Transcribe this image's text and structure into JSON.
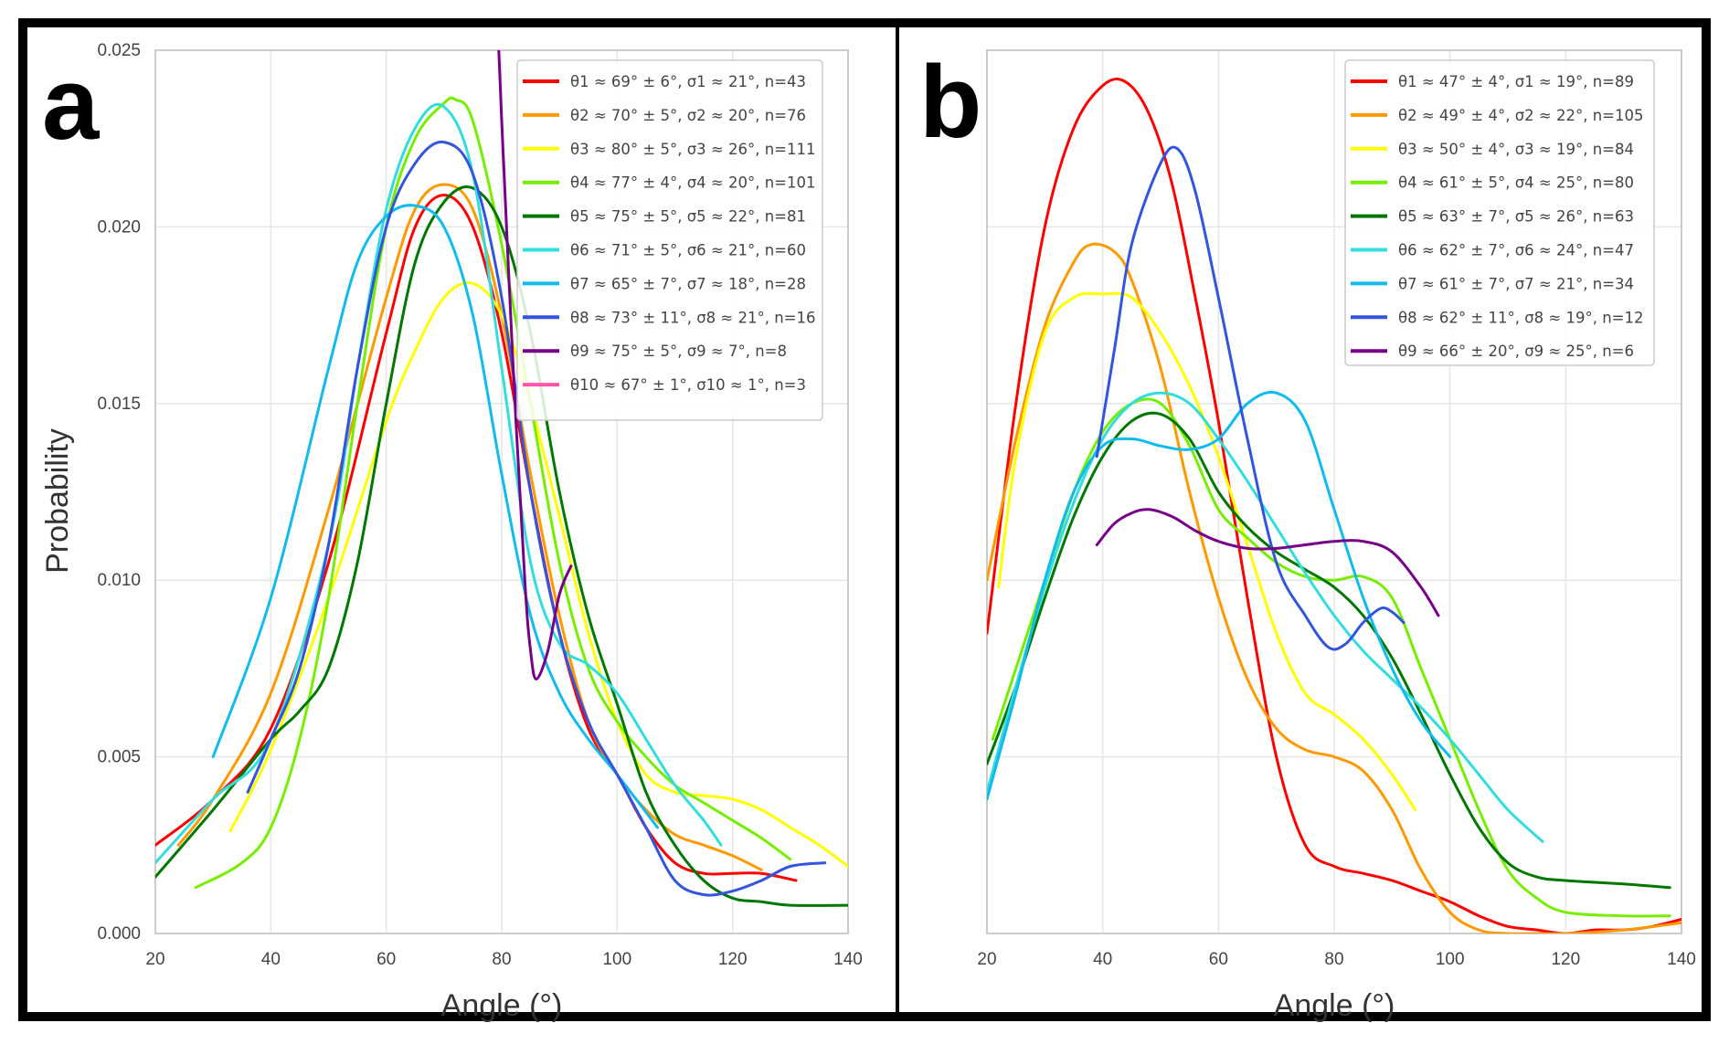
{
  "chart_data": [
    {
      "type": "line",
      "panel_label": "a",
      "title": "",
      "xlabel": "Angle (°)",
      "ylabel": "Probability",
      "xlim": [
        20,
        140
      ],
      "ylim": [
        0.0,
        0.025
      ],
      "x_ticks": [
        "20",
        "40",
        "60",
        "80",
        "100",
        "120",
        "140"
      ],
      "y_ticks": [
        "0.000",
        "0.005",
        "0.010",
        "0.015",
        "0.020",
        "0.025"
      ],
      "grid": true,
      "legend_position": "top-right",
      "series": [
        {
          "name": "θ1 ≈ 69° ± 6°, σ1 ≈ 21°, n=43",
          "color": "#ff0000",
          "x": [
            20,
            30,
            40,
            50,
            60,
            65,
            70,
            75,
            80,
            85,
            90,
            95,
            100,
            105,
            110,
            115,
            120,
            125,
            131
          ],
          "y": [
            0.0025,
            0.0038,
            0.0058,
            0.0105,
            0.017,
            0.02,
            0.0209,
            0.02,
            0.017,
            0.0125,
            0.0085,
            0.0058,
            0.0045,
            0.003,
            0.002,
            0.0017,
            0.0017,
            0.0017,
            0.0015
          ]
        },
        {
          "name": "θ2 ≈ 70° ± 5°, σ2 ≈ 20°, n=76",
          "color": "#ff9900",
          "x": [
            24,
            30,
            40,
            50,
            60,
            65,
            70,
            75,
            80,
            85,
            90,
            95,
            100,
            105,
            110,
            115,
            120,
            125
          ],
          "y": [
            0.0025,
            0.0038,
            0.0068,
            0.012,
            0.018,
            0.0205,
            0.0212,
            0.0205,
            0.0175,
            0.013,
            0.009,
            0.006,
            0.0045,
            0.0035,
            0.0028,
            0.0025,
            0.0022,
            0.0018
          ]
        },
        {
          "name": "θ3 ≈ 80° ± 5°, σ3 ≈ 26°, n=111",
          "color": "#ffff00",
          "x": [
            33,
            40,
            50,
            60,
            65,
            70,
            75,
            80,
            85,
            90,
            95,
            100,
            105,
            110,
            115,
            120,
            125,
            130,
            135,
            140
          ],
          "y": [
            0.0029,
            0.0052,
            0.0095,
            0.0145,
            0.0165,
            0.018,
            0.0184,
            0.0175,
            0.015,
            0.0118,
            0.0085,
            0.006,
            0.0045,
            0.004,
            0.0039,
            0.0038,
            0.0035,
            0.003,
            0.0025,
            0.0019
          ]
        },
        {
          "name": "θ4 ≈ 77° ± 4°, σ4 ≈ 20°, n=101",
          "color": "#77ee00",
          "x": [
            27,
            35,
            40,
            45,
            50,
            55,
            60,
            65,
            70,
            72,
            75,
            80,
            85,
            90,
            95,
            100,
            105,
            110,
            115,
            120,
            125,
            130
          ],
          "y": [
            0.0013,
            0.002,
            0.003,
            0.0055,
            0.0095,
            0.015,
            0.02,
            0.0225,
            0.0235,
            0.0236,
            0.023,
            0.0195,
            0.015,
            0.0105,
            0.0075,
            0.006,
            0.005,
            0.0042,
            0.0037,
            0.0032,
            0.0027,
            0.0021
          ]
        },
        {
          "name": "θ5 ≈ 75° ± 5°, σ5 ≈ 22°, n=81",
          "color": "#007700",
          "x": [
            20,
            30,
            40,
            45,
            50,
            55,
            60,
            65,
            70,
            75,
            80,
            85,
            90,
            95,
            100,
            105,
            110,
            115,
            120,
            125,
            130,
            140
          ],
          "y": [
            0.0016,
            0.0035,
            0.0055,
            0.0063,
            0.0075,
            0.0105,
            0.015,
            0.019,
            0.0207,
            0.0211,
            0.02,
            0.017,
            0.0125,
            0.009,
            0.0065,
            0.004,
            0.0025,
            0.0015,
            0.001,
            0.0009,
            0.0008,
            0.0008
          ]
        },
        {
          "name": "θ6 ≈ 71° ± 5°, σ6 ≈ 21°, n=60",
          "color": "#33dddd",
          "x": [
            20,
            30,
            40,
            50,
            55,
            60,
            65,
            70,
            75,
            80,
            85,
            90,
            95,
            100,
            105,
            110,
            115,
            118
          ],
          "y": [
            0.002,
            0.0038,
            0.0055,
            0.011,
            0.016,
            0.0205,
            0.0228,
            0.0234,
            0.0215,
            0.016,
            0.0105,
            0.0082,
            0.0076,
            0.0068,
            0.0055,
            0.0042,
            0.0032,
            0.0025
          ]
        },
        {
          "name": "θ7 ≈ 65° ± 7°, σ7 ≈ 18°, n=28",
          "color": "#11bbee",
          "x": [
            30,
            40,
            50,
            55,
            60,
            65,
            70,
            75,
            80,
            85,
            90,
            95,
            100,
            107
          ],
          "y": [
            0.005,
            0.0095,
            0.016,
            0.019,
            0.0203,
            0.0206,
            0.02,
            0.0175,
            0.013,
            0.009,
            0.0068,
            0.0055,
            0.0045,
            0.003
          ]
        },
        {
          "name": "θ8 ≈ 73° ± 11°, σ8 ≈ 21°, n=16",
          "color": "#3355dd",
          "x": [
            36,
            40,
            45,
            50,
            55,
            60,
            65,
            70,
            75,
            80,
            85,
            90,
            95,
            100,
            105,
            110,
            115,
            120,
            125,
            130,
            136
          ],
          "y": [
            0.004,
            0.0055,
            0.0075,
            0.011,
            0.016,
            0.02,
            0.0218,
            0.0224,
            0.0215,
            0.018,
            0.0125,
            0.0085,
            0.006,
            0.0045,
            0.003,
            0.0015,
            0.0011,
            0.0012,
            0.0015,
            0.0019,
            0.002
          ]
        },
        {
          "name": "θ9 ≈ 75° ± 5°, σ9 ≈ 7°, n=8",
          "color": "#770088",
          "x": [
            79.5,
            80,
            82,
            84,
            85,
            86,
            88,
            90,
            92
          ],
          "y": [
            0.025,
            0.023,
            0.016,
            0.01,
            0.008,
            0.0072,
            0.008,
            0.0096,
            0.0104
          ]
        },
        {
          "name": "θ10 ≈ 67° ± 1°, σ10 ≈ 1°, n=3",
          "color": "#ff55aa",
          "x": [],
          "y": []
        }
      ]
    },
    {
      "type": "line",
      "panel_label": "b",
      "title": "",
      "xlabel": "Angle (°)",
      "ylabel": "",
      "xlim": [
        20,
        140
      ],
      "ylim": [
        0.0,
        0.025
      ],
      "x_ticks": [
        "20",
        "40",
        "60",
        "80",
        "100",
        "120",
        "140"
      ],
      "y_ticks": [],
      "grid": true,
      "legend_position": "top-right",
      "series": [
        {
          "name": "θ1 ≈ 47° ± 4°, σ1 ≈ 19°, n=89",
          "color": "#ff0000",
          "x": [
            20,
            25,
            30,
            35,
            40,
            44,
            48,
            52,
            56,
            60,
            65,
            70,
            75,
            80,
            85,
            90,
            95,
            100,
            105,
            110,
            115,
            120,
            125,
            130,
            135,
            140
          ],
          "y": [
            0.0085,
            0.015,
            0.02,
            0.0228,
            0.024,
            0.0241,
            0.0232,
            0.0212,
            0.018,
            0.0145,
            0.0095,
            0.005,
            0.0025,
            0.0019,
            0.0017,
            0.0015,
            0.0012,
            0.0009,
            0.0005,
            0.0002,
            0.0001,
            0.0,
            0.0001,
            0.0001,
            0.0002,
            0.0004
          ]
        },
        {
          "name": "θ2 ≈ 49° ± 4°, σ2 ≈ 22°, n=105",
          "color": "#ff9900",
          "x": [
            20,
            25,
            30,
            35,
            38,
            42,
            45,
            50,
            55,
            60,
            65,
            70,
            75,
            80,
            85,
            90,
            95,
            100,
            105,
            110,
            115,
            120,
            130,
            140
          ],
          "y": [
            0.01,
            0.014,
            0.0172,
            0.019,
            0.0195,
            0.0193,
            0.0185,
            0.016,
            0.0125,
            0.0095,
            0.0072,
            0.0058,
            0.0052,
            0.005,
            0.0046,
            0.0035,
            0.0018,
            0.0006,
            0.0001,
            0.0,
            0.0,
            0.0,
            0.0001,
            0.0003
          ]
        },
        {
          "name": "θ3 ≈ 50° ± 4°, σ3 ≈ 19°, n=84",
          "color": "#ffff00",
          "x": [
            22,
            25,
            30,
            35,
            40,
            45,
            50,
            55,
            60,
            65,
            70,
            75,
            80,
            85,
            90,
            94
          ],
          "y": [
            0.0098,
            0.0135,
            0.017,
            0.018,
            0.0181,
            0.018,
            0.017,
            0.0155,
            0.0135,
            0.011,
            0.0085,
            0.0068,
            0.0062,
            0.0055,
            0.0045,
            0.0035
          ]
        },
        {
          "name": "θ4 ≈ 61° ± 5°, σ4 ≈ 25°, n=80",
          "color": "#77ee00",
          "x": [
            21,
            25,
            30,
            35,
            40,
            45,
            50,
            55,
            60,
            65,
            70,
            75,
            80,
            85,
            90,
            95,
            100,
            105,
            110,
            115,
            120,
            130,
            138
          ],
          "y": [
            0.0055,
            0.0075,
            0.01,
            0.0125,
            0.0142,
            0.015,
            0.015,
            0.0138,
            0.012,
            0.0112,
            0.0105,
            0.0101,
            0.01,
            0.0101,
            0.0095,
            0.0075,
            0.0055,
            0.0035,
            0.0018,
            0.001,
            0.0006,
            0.0005,
            0.0005
          ]
        },
        {
          "name": "θ5 ≈ 63° ± 7°, σ5 ≈ 26°, n=63",
          "color": "#007700",
          "x": [
            20,
            25,
            30,
            35,
            40,
            45,
            50,
            55,
            60,
            65,
            70,
            75,
            80,
            85,
            90,
            95,
            100,
            105,
            110,
            115,
            120,
            130,
            138
          ],
          "y": [
            0.0048,
            0.007,
            0.0095,
            0.0118,
            0.0135,
            0.0145,
            0.0147,
            0.014,
            0.0125,
            0.0115,
            0.0108,
            0.0103,
            0.0098,
            0.009,
            0.0078,
            0.0062,
            0.0045,
            0.003,
            0.002,
            0.0016,
            0.0015,
            0.0014,
            0.0013
          ]
        },
        {
          "name": "θ6 ≈ 62° ± 7°, σ6 ≈ 24°, n=47",
          "color": "#33dddd",
          "x": [
            20,
            25,
            30,
            35,
            40,
            45,
            50,
            55,
            60,
            65,
            70,
            75,
            80,
            85,
            90,
            95,
            100,
            105,
            110,
            116
          ],
          "y": [
            0.004,
            0.007,
            0.0098,
            0.0122,
            0.014,
            0.015,
            0.0153,
            0.015,
            0.014,
            0.0128,
            0.0115,
            0.0102,
            0.009,
            0.008,
            0.0072,
            0.0064,
            0.0055,
            0.0045,
            0.0035,
            0.0026
          ]
        },
        {
          "name": "θ7 ≈ 61° ± 7°, σ7 ≈ 21°, n=34",
          "color": "#11bbee",
          "x": [
            20,
            25,
            30,
            35,
            40,
            45,
            50,
            55,
            60,
            65,
            70,
            75,
            80,
            85,
            90,
            95,
            100
          ],
          "y": [
            0.0038,
            0.0068,
            0.01,
            0.0125,
            0.0138,
            0.014,
            0.0138,
            0.0137,
            0.014,
            0.015,
            0.0153,
            0.0145,
            0.012,
            0.0095,
            0.0075,
            0.006,
            0.005
          ]
        },
        {
          "name": "θ8 ≈ 62° ± 11°, σ8 ≈ 19°, n=12",
          "color": "#3355dd",
          "x": [
            39,
            42,
            45,
            50,
            53,
            56,
            60,
            65,
            70,
            75,
            79,
            82,
            85,
            88,
            90,
            92
          ],
          "y": [
            0.0135,
            0.0165,
            0.0195,
            0.0218,
            0.0222,
            0.021,
            0.018,
            0.014,
            0.0105,
            0.009,
            0.0081,
            0.0082,
            0.0088,
            0.0092,
            0.0091,
            0.0088
          ]
        },
        {
          "name": "θ9 ≈ 66° ± 20°, σ9 ≈ 25°, n=6",
          "color": "#770088",
          "x": [
            39,
            42,
            45,
            48,
            52,
            56,
            60,
            65,
            70,
            75,
            80,
            85,
            90,
            95,
            98
          ],
          "y": [
            0.011,
            0.0116,
            0.0119,
            0.012,
            0.0118,
            0.0114,
            0.0111,
            0.0109,
            0.0109,
            0.011,
            0.0111,
            0.0111,
            0.0108,
            0.0098,
            0.009
          ]
        }
      ]
    }
  ]
}
